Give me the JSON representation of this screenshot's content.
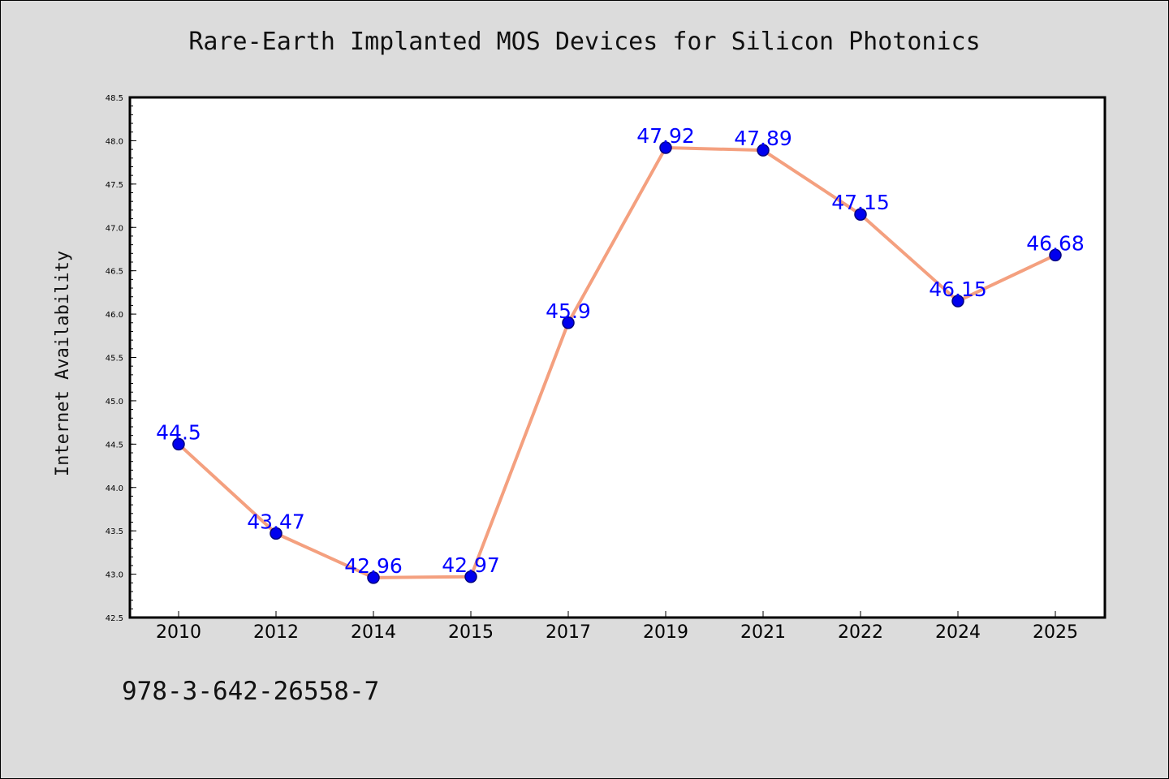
{
  "header": {
    "title": "Rare-Earth Implanted MOS Devices for Silicon Photonics"
  },
  "footer": {
    "isbn": "978-3-642-26558-7"
  },
  "chart_data": {
    "type": "line",
    "title": "Rare-Earth Implanted MOS Devices for Silicon Photonics",
    "xlabel": "",
    "ylabel": "Internet Availability",
    "categories": [
      "2010",
      "2012",
      "2014",
      "2015",
      "2017",
      "2019",
      "2021",
      "2022",
      "2024",
      "2025"
    ],
    "series": [
      {
        "values": [
          44.5,
          43.47,
          42.96,
          42.97,
          45.9,
          47.92,
          47.89,
          47.15,
          46.15,
          46.68
        ]
      }
    ],
    "data_labels": [
      "44.5",
      "43.47",
      "42.96",
      "42.97",
      "45.9",
      "47.92",
      "47.89",
      "47.15",
      "46.15",
      "46.68"
    ],
    "ylim": [
      42.5,
      48.5
    ],
    "yticks": [
      "42.5",
      "43.0",
      "43.5",
      "44.0",
      "44.5",
      "45.0",
      "45.5",
      "46.0",
      "46.5",
      "47.0",
      "47.5",
      "48.0",
      "48.5"
    ],
    "grid": false,
    "legend": "none",
    "colors": {
      "line": "#f4a07f",
      "marker": "#0000ee",
      "marker_edge": "#000080",
      "label": "#0000ff",
      "plot_bg": "#ffffff",
      "page_bg": "#dcdcdc"
    }
  }
}
